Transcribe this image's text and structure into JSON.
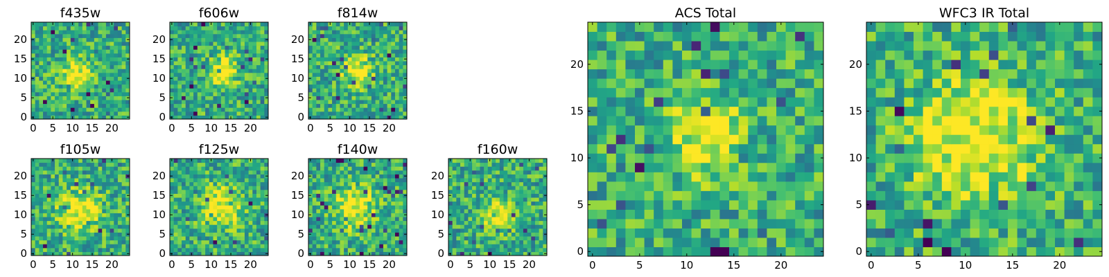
{
  "chart_data": [
    {
      "type": "heatmap",
      "title": "f435w",
      "xlabel": "",
      "ylabel": "",
      "xlim": [
        0,
        24
      ],
      "ylim": [
        0,
        24
      ],
      "xticks": [
        "0",
        "5",
        "10",
        "15",
        "20"
      ],
      "yticks": [
        "0",
        "5",
        "10",
        "15",
        "20"
      ],
      "colormap": "viridis",
      "blob": {
        "center_x": 11,
        "center_y": 11,
        "radius": 3
      },
      "seed": 11
    },
    {
      "type": "heatmap",
      "title": "f606w",
      "xlabel": "",
      "ylabel": "",
      "xlim": [
        0,
        24
      ],
      "ylim": [
        0,
        24
      ],
      "xticks": [
        "0",
        "5",
        "10",
        "15",
        "20"
      ],
      "yticks": [
        "0",
        "5",
        "10",
        "15",
        "20"
      ],
      "colormap": "viridis",
      "blob": {
        "center_x": 13,
        "center_y": 12,
        "radius": 3
      },
      "seed": 23
    },
    {
      "type": "heatmap",
      "title": "f814w",
      "xlabel": "",
      "ylabel": "",
      "xlim": [
        0,
        24
      ],
      "ylim": [
        0,
        24
      ],
      "xticks": [
        "0",
        "5",
        "10",
        "15",
        "20"
      ],
      "yticks": [
        "0",
        "5",
        "10",
        "15",
        "20"
      ],
      "colormap": "viridis",
      "blob": {
        "center_x": 12,
        "center_y": 12,
        "radius": 3
      },
      "seed": 37
    },
    {
      "type": "heatmap",
      "title": "f105w",
      "xlabel": "",
      "ylabel": "",
      "xlim": [
        0,
        24
      ],
      "ylim": [
        0,
        24
      ],
      "xticks": [
        "0",
        "5",
        "10",
        "15",
        "20"
      ],
      "yticks": [
        "0",
        "5",
        "10",
        "15",
        "20"
      ],
      "colormap": "viridis",
      "blob": {
        "center_x": 12,
        "center_y": 11,
        "radius": 4
      },
      "seed": 41
    },
    {
      "type": "heatmap",
      "title": "f125w",
      "xlabel": "",
      "ylabel": "",
      "xlim": [
        0,
        24
      ],
      "ylim": [
        0,
        24
      ],
      "xticks": [
        "0",
        "5",
        "10",
        "15",
        "20"
      ],
      "yticks": [
        "0",
        "5",
        "10",
        "15",
        "20"
      ],
      "colormap": "viridis",
      "blob": {
        "center_x": 13,
        "center_y": 12,
        "radius": 4
      },
      "seed": 53
    },
    {
      "type": "heatmap",
      "title": "f140w",
      "xlabel": "",
      "ylabel": "",
      "xlim": [
        0,
        24
      ],
      "ylim": [
        0,
        24
      ],
      "xticks": [
        "0",
        "5",
        "10",
        "15",
        "20"
      ],
      "yticks": [
        "0",
        "5",
        "10",
        "15",
        "20"
      ],
      "colormap": "viridis",
      "blob": {
        "center_x": 11,
        "center_y": 12,
        "radius": 4
      },
      "seed": 67
    },
    {
      "type": "heatmap",
      "title": "f160w",
      "xlabel": "",
      "ylabel": "",
      "xlim": [
        0,
        24
      ],
      "ylim": [
        0,
        24
      ],
      "xticks": [
        "0",
        "5",
        "10",
        "15",
        "20"
      ],
      "yticks": [
        "0",
        "5",
        "10",
        "15",
        "20"
      ],
      "colormap": "viridis",
      "blob": {
        "center_x": 12,
        "center_y": 10,
        "radius": 3
      },
      "seed": 79
    },
    {
      "type": "heatmap",
      "title": "ACS Total",
      "xlabel": "",
      "ylabel": "",
      "xlim": [
        0,
        24
      ],
      "ylim": [
        0,
        24
      ],
      "xticks": [
        "0",
        "5",
        "10",
        "15",
        "20"
      ],
      "yticks": [
        "0",
        "5",
        "10",
        "15",
        "20"
      ],
      "colormap": "viridis",
      "blob": {
        "center_x": 12,
        "center_y": 12,
        "radius": 3
      },
      "seed": 97
    },
    {
      "type": "heatmap",
      "title": "WFC3 IR Total",
      "xlabel": "",
      "ylabel": "",
      "xlim": [
        0,
        24
      ],
      "ylim": [
        0,
        24
      ],
      "xticks": [
        "0",
        "5",
        "10",
        "15",
        "20"
      ],
      "yticks": [
        "0",
        "5",
        "10",
        "15",
        "20"
      ],
      "colormap": "viridis",
      "blob": {
        "center_x": 11,
        "center_y": 12,
        "radius": 5
      },
      "seed": 113
    }
  ]
}
